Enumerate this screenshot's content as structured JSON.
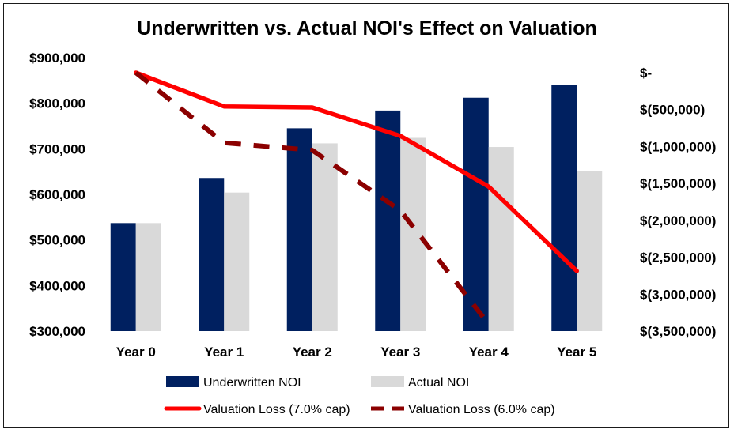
{
  "chart_data": {
    "type": "bar",
    "title": "Underwritten vs. Actual NOI's Effect on Valuation",
    "categories": [
      "Year 0",
      "Year 1",
      "Year 2",
      "Year 3",
      "Year 4",
      "Year 5"
    ],
    "series": [
      {
        "name": "Underwritten NOI",
        "type": "bar",
        "axis": "left",
        "color": "#002060",
        "values": [
          537000,
          636000,
          745000,
          784000,
          812000,
          840000
        ]
      },
      {
        "name": "Actual NOI",
        "type": "bar",
        "axis": "left",
        "color": "#d9d9d9",
        "values": [
          537000,
          604000,
          712000,
          724000,
          704000,
          652000
        ]
      },
      {
        "name": "Valuation Loss (7.0% cap)",
        "type": "line",
        "axis": "right",
        "color": "#ff0000",
        "dashed": false,
        "values": [
          0,
          -457000,
          -471000,
          -857000,
          -1543000,
          -2686000
        ]
      },
      {
        "name": "Valuation Loss (6.0% cap)",
        "type": "line",
        "axis": "right",
        "color": "#8b0000",
        "dashed": true,
        "values": [
          0,
          -950000,
          -1050000,
          -1867000,
          -3406000,
          null
        ]
      }
    ],
    "left_axis": {
      "min": 300000,
      "max": 900000,
      "ticks": [
        {
          "value": 900000,
          "label": "$900,000"
        },
        {
          "value": 800000,
          "label": "$800,000"
        },
        {
          "value": 700000,
          "label": "$700,000"
        },
        {
          "value": 600000,
          "label": "$600,000"
        },
        {
          "value": 500000,
          "label": "$500,000"
        },
        {
          "value": 400000,
          "label": "$400,000"
        },
        {
          "value": 300000,
          "label": "$300,000"
        }
      ]
    },
    "right_axis": {
      "min": -3500000,
      "max": 0,
      "ticks": [
        {
          "value": 0,
          "label": "$-"
        },
        {
          "value": -500000,
          "label": "$(500,000)"
        },
        {
          "value": -1000000,
          "label": "$(1,000,000)"
        },
        {
          "value": -1500000,
          "label": "$(1,500,000)"
        },
        {
          "value": -2000000,
          "label": "$(2,000,000)"
        },
        {
          "value": -2500000,
          "label": "$(2,500,000)"
        },
        {
          "value": -3000000,
          "label": "$(3,000,000)"
        },
        {
          "value": -3500000,
          "label": "$(3,500,000)"
        }
      ]
    },
    "grid": false,
    "legend": "bottom"
  }
}
